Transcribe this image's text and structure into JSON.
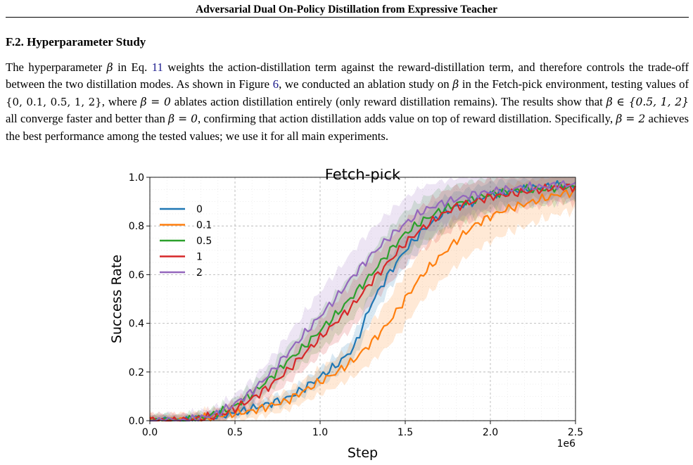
{
  "header": {
    "running_title": "Adversarial Dual On-Policy Distillation from Expressive Teacher"
  },
  "section": {
    "title": "F.2. Hyperparameter Study"
  },
  "paragraph": {
    "p1": "The hyperparameter ",
    "beta": "β",
    "p2": " in Eq. ",
    "eq_ref": "11",
    "p3": " weights the action-distillation term against the reward-distillation term, and therefore controls the trade-off between the two distillation modes. As shown in Figure ",
    "fig_ref": "6",
    "p4": ", we conducted an ablation study on ",
    "p5": " in the Fetch-pick environment, testing values of ",
    "set_all": "{0, 0.1, 0.5, 1, 2}",
    "p6": ", where ",
    "beta_zero": "β = 0",
    "p7": " ablates action distillation entirely (only reward distillation remains). The results show that ",
    "beta_in": "β ∈ {0.5, 1, 2}",
    "p8": " all converge faster and better than ",
    "p9": ", confirming that action distillation adds value on top of reward distillation. Specifically, ",
    "beta_two": "β = 2",
    "p10": " achieves the best performance among the tested values; we use it for all main experiments."
  },
  "chart_data": {
    "type": "line",
    "title": "Fetch-pick",
    "xlabel": "Step",
    "ylabel": "Success Rate",
    "x_scale_label": "1e6",
    "xlim": [
      0,
      2.5
    ],
    "ylim": [
      0,
      1.0
    ],
    "x_ticks": [
      "0.0",
      "0.5",
      "1.0",
      "1.5",
      "2.0",
      "2.5"
    ],
    "y_ticks": [
      "0.0",
      "0.2",
      "0.4",
      "0.6",
      "0.8",
      "1.0"
    ],
    "grid": true,
    "legend_position": "top-left",
    "x": [
      0.0,
      0.1,
      0.2,
      0.3,
      0.4,
      0.5,
      0.6,
      0.7,
      0.8,
      0.9,
      1.0,
      1.1,
      1.2,
      1.3,
      1.4,
      1.5,
      1.6,
      1.7,
      1.8,
      1.9,
      2.0,
      2.1,
      2.2,
      2.3,
      2.4,
      2.5
    ],
    "series": [
      {
        "name": "0",
        "color": "#1f77b4",
        "values": [
          0.0,
          0.0,
          0.0,
          0.01,
          0.02,
          0.03,
          0.05,
          0.07,
          0.09,
          0.13,
          0.18,
          0.23,
          0.3,
          0.48,
          0.6,
          0.7,
          0.78,
          0.84,
          0.88,
          0.9,
          0.93,
          0.94,
          0.95,
          0.96,
          0.97,
          0.96
        ],
        "band": 0.05
      },
      {
        "name": "0.1",
        "color": "#ff7f0e",
        "values": [
          0.0,
          0.0,
          0.0,
          0.01,
          0.02,
          0.03,
          0.04,
          0.06,
          0.08,
          0.12,
          0.16,
          0.2,
          0.25,
          0.32,
          0.4,
          0.5,
          0.6,
          0.67,
          0.74,
          0.8,
          0.84,
          0.87,
          0.89,
          0.91,
          0.93,
          0.94
        ],
        "band": 0.08
      },
      {
        "name": "0.5",
        "color": "#2ca02c",
        "values": [
          0.0,
          0.0,
          0.0,
          0.01,
          0.03,
          0.06,
          0.11,
          0.17,
          0.24,
          0.3,
          0.37,
          0.44,
          0.52,
          0.6,
          0.69,
          0.77,
          0.82,
          0.86,
          0.89,
          0.91,
          0.93,
          0.94,
          0.95,
          0.95,
          0.96,
          0.96
        ],
        "band": 0.07
      },
      {
        "name": "1",
        "color": "#d62728",
        "values": [
          0.0,
          0.0,
          0.0,
          0.01,
          0.02,
          0.05,
          0.09,
          0.14,
          0.2,
          0.27,
          0.34,
          0.41,
          0.48,
          0.57,
          0.65,
          0.73,
          0.79,
          0.84,
          0.88,
          0.9,
          0.92,
          0.93,
          0.94,
          0.95,
          0.96,
          0.96
        ],
        "band": 0.07
      },
      {
        "name": "2",
        "color": "#9467bd",
        "values": [
          0.0,
          0.0,
          0.0,
          0.01,
          0.03,
          0.07,
          0.12,
          0.19,
          0.27,
          0.35,
          0.43,
          0.51,
          0.6,
          0.68,
          0.75,
          0.81,
          0.86,
          0.89,
          0.91,
          0.93,
          0.94,
          0.95,
          0.96,
          0.96,
          0.97,
          0.97
        ],
        "band": 0.08
      }
    ]
  }
}
